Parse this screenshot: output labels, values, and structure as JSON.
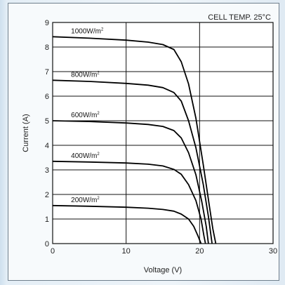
{
  "chart_data": {
    "type": "line",
    "title": "",
    "annotation": "CELL TEMP. 25°C",
    "xlabel": "Voltage (V)",
    "ylabel": "Current (A)",
    "xlim": [
      0,
      30
    ],
    "ylim": [
      0,
      9
    ],
    "x_ticks": [
      0,
      10,
      20,
      30
    ],
    "y_ticks": [
      0,
      1,
      2,
      3,
      4,
      5,
      6,
      7,
      8,
      9
    ],
    "grid": true,
    "series": [
      {
        "name": "1000W/m²",
        "label_text": "1000W/m",
        "label_unit_exp": "2",
        "points": [
          [
            0,
            8.42
          ],
          [
            5,
            8.36
          ],
          [
            10,
            8.28
          ],
          [
            13,
            8.2
          ],
          [
            15,
            8.1
          ],
          [
            16.5,
            7.9
          ],
          [
            17.5,
            7.4
          ],
          [
            18.5,
            6.5
          ],
          [
            19.5,
            5.1
          ],
          [
            20.5,
            3.2
          ],
          [
            21.3,
            1.6
          ],
          [
            21.8,
            0.6
          ],
          [
            22.2,
            0
          ]
        ]
      },
      {
        "name": "800W/m²",
        "label_text": "800W/m",
        "label_unit_exp": "2",
        "points": [
          [
            0,
            6.65
          ],
          [
            5,
            6.6
          ],
          [
            10,
            6.52
          ],
          [
            13,
            6.45
          ],
          [
            15,
            6.35
          ],
          [
            16.5,
            6.15
          ],
          [
            17.5,
            5.8
          ],
          [
            18.5,
            5.0
          ],
          [
            19.5,
            3.9
          ],
          [
            20.5,
            2.4
          ],
          [
            21.2,
            1.1
          ],
          [
            21.7,
            0
          ]
        ]
      },
      {
        "name": "600W/m²",
        "label_text": "600W/m",
        "label_unit_exp": "2",
        "points": [
          [
            0,
            5.0
          ],
          [
            5,
            4.97
          ],
          [
            10,
            4.91
          ],
          [
            13,
            4.85
          ],
          [
            15,
            4.77
          ],
          [
            16.5,
            4.6
          ],
          [
            17.5,
            4.3
          ],
          [
            18.5,
            3.7
          ],
          [
            19.5,
            2.8
          ],
          [
            20.3,
            1.7
          ],
          [
            20.9,
            0.7
          ],
          [
            21.2,
            0
          ]
        ]
      },
      {
        "name": "400W/m²",
        "label_text": "400W/m",
        "label_unit_exp": "2",
        "points": [
          [
            0,
            3.35
          ],
          [
            5,
            3.32
          ],
          [
            10,
            3.28
          ],
          [
            13,
            3.23
          ],
          [
            15,
            3.16
          ],
          [
            16.5,
            3.02
          ],
          [
            17.5,
            2.82
          ],
          [
            18.5,
            2.4
          ],
          [
            19.5,
            1.75
          ],
          [
            20.2,
            1.0
          ],
          [
            20.6,
            0.3
          ],
          [
            20.8,
            0
          ]
        ]
      },
      {
        "name": "200W/m²",
        "label_text": "200W/m",
        "label_unit_exp": "2",
        "points": [
          [
            0,
            1.55
          ],
          [
            5,
            1.52
          ],
          [
            10,
            1.48
          ],
          [
            13,
            1.44
          ],
          [
            15,
            1.39
          ],
          [
            16.5,
            1.32
          ],
          [
            17.5,
            1.2
          ],
          [
            18.5,
            1.0
          ],
          [
            19.2,
            0.7
          ],
          [
            19.8,
            0.3
          ],
          [
            20.2,
            0
          ]
        ]
      }
    ]
  }
}
